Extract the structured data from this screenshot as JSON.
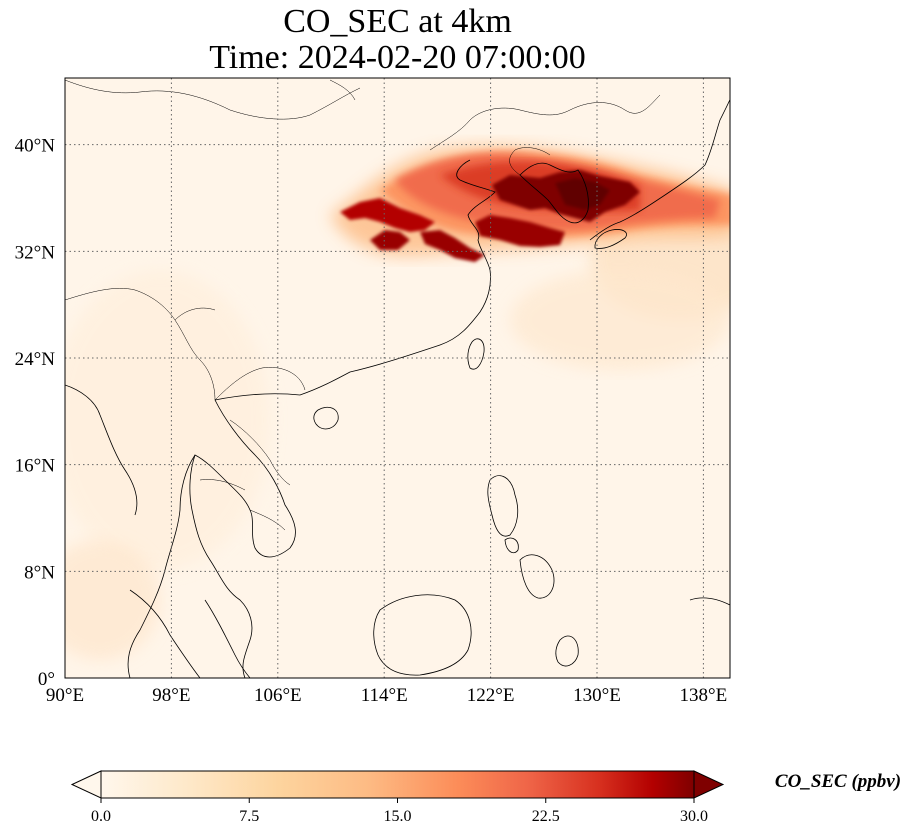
{
  "title": {
    "line1": "CO_SEC at 4km",
    "line2": "Time: 2024-02-20 07:00:00"
  },
  "map": {
    "lon_range": [
      90,
      140
    ],
    "lat_range": [
      0,
      45
    ],
    "lon_ticks": [
      {
        "value": 90,
        "label": "90°E"
      },
      {
        "value": 98,
        "label": "98°E"
      },
      {
        "value": 106,
        "label": "106°E"
      },
      {
        "value": 114,
        "label": "114°E"
      },
      {
        "value": 122,
        "label": "122°E"
      },
      {
        "value": 130,
        "label": "130°E"
      },
      {
        "value": 138,
        "label": "138°E"
      }
    ],
    "lat_ticks": [
      {
        "value": 0,
        "label": "0°"
      },
      {
        "value": 8,
        "label": "8°N"
      },
      {
        "value": 16,
        "label": "16°N"
      },
      {
        "value": 24,
        "label": "24°N"
      },
      {
        "value": 32,
        "label": "32°N"
      },
      {
        "value": 40,
        "label": "40°N"
      }
    ],
    "gridlines": true
  },
  "colorbar": {
    "label": "CO_SEC (ppbv)",
    "colormap": "OrRd",
    "range": [
      0,
      30
    ],
    "extend": "both",
    "ticks": [
      {
        "value": 0,
        "label": "0.0"
      },
      {
        "value": 7.5,
        "label": "7.5"
      },
      {
        "value": 15,
        "label": "15.0"
      },
      {
        "value": 22.5,
        "label": "22.5"
      },
      {
        "value": 30,
        "label": "30.0"
      }
    ]
  },
  "plumes": [
    {
      "name": "north-china-korea-japan-band",
      "lon": [
        111,
        140
      ],
      "lat": [
        33,
        39.5
      ],
      "level": 15
    },
    {
      "name": "korea-peninsula-core",
      "lon": [
        123.5,
        129.5
      ],
      "lat": [
        35.5,
        38.5
      ],
      "level": 30
    },
    {
      "name": "yellow-sea-core",
      "lon": [
        121,
        128
      ],
      "lat": [
        33,
        35
      ],
      "level": 28
    },
    {
      "name": "east-china-core",
      "lon": [
        112,
        120
      ],
      "lat": [
        32,
        35.5
      ],
      "level": 30
    }
  ]
}
